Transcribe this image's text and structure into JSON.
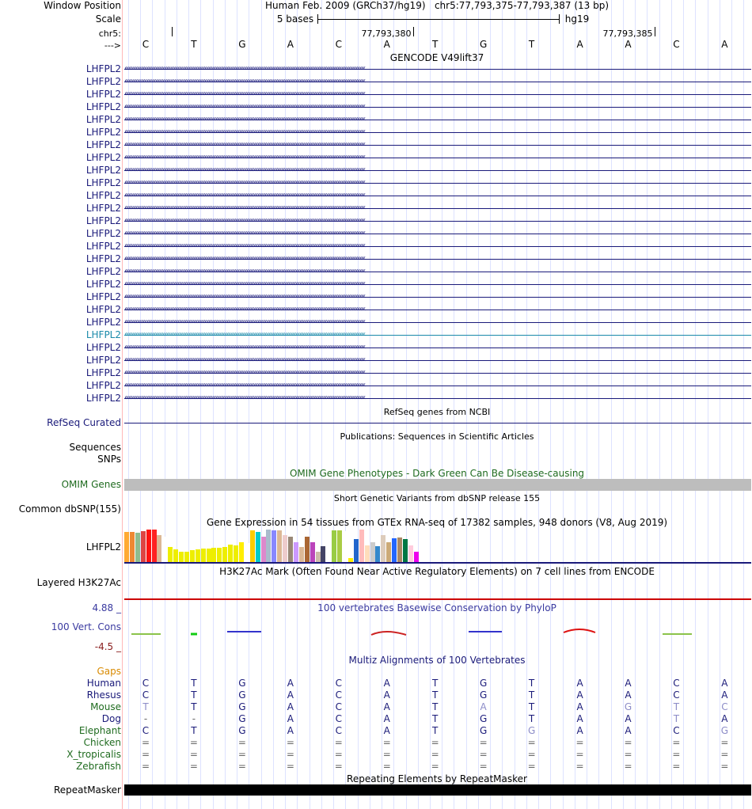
{
  "header": {
    "window_position_label": "Window Position",
    "scale_label": "Scale",
    "chrom_label": "chr5:",
    "strand_label": "--->",
    "assembly_title": "Human Feb. 2009 (GRCh37/hg19)   chr5:77,793,375-77,793,387 (13 bp)",
    "scale_text": "5 bases",
    "scale_db": "hg19",
    "pos1": "77,793,380",
    "pos2": "77,793,385"
  },
  "sequence": [
    "C",
    "T",
    "G",
    "A",
    "C",
    "A",
    "T",
    "G",
    "T",
    "A",
    "A",
    "C",
    "A"
  ],
  "gencode": {
    "title": "GENCODE V49lift37",
    "gene_name": "LHFPL2",
    "rows": 27,
    "highlight_index": 21,
    "color": "#1a1a7a",
    "highlight_color": "#1a8aaa"
  },
  "refseq": {
    "label": "RefSeq Curated",
    "title": "RefSeq genes from NCBI"
  },
  "publications": {
    "title": "Publications: Sequences in Scientific Articles",
    "label1": "Sequences",
    "label2": "SNPs"
  },
  "omim": {
    "label": "OMIM Genes",
    "title": "OMIM Gene Phenotypes - Dark Green Can Be Disease-causing"
  },
  "dbsnp": {
    "label": "Common dbSNP(155)",
    "title": "Short Genetic Variants from dbSNP release 155"
  },
  "gtex": {
    "title": "Gene Expression in 54 tissues from GTEx RNA-seq of 17382 samples, 948 donors (V8, Aug 2019)",
    "label": "LHFPL2",
    "values": [
      0.9,
      0.9,
      0.88,
      0.92,
      0.97,
      0.98,
      0.82,
      0.77,
      0.45,
      0.37,
      0.3,
      0.32,
      0.35,
      0.38,
      0.4,
      0.41,
      0.42,
      0.44,
      0.45,
      0.52,
      0.49,
      0.6,
      0.58,
      0.95,
      0.9,
      0.75,
      0.98,
      0.96,
      0.95,
      0.8,
      0.75,
      0.6,
      0.45,
      0.75,
      0.6,
      0.32,
      0.48,
      0.3,
      0.95,
      0.95,
      0.92,
      0.12,
      0.7,
      0.97,
      0.5,
      0.6,
      0.48,
      0.8,
      0.6,
      0.72,
      0.74,
      0.7,
      0.5,
      0.3
    ],
    "colors": [
      "#ffaa33",
      "#ee8833",
      "#8fbc8f",
      "#dd4444",
      "#ff1111",
      "#ff2222",
      "#dcb896",
      "#ffffff",
      "#eeee00",
      "#eeee00",
      "#eeee00",
      "#eeee00",
      "#eeee00",
      "#eeee00",
      "#eeee00",
      "#eeee00",
      "#eeee00",
      "#eeee00",
      "#eeee00",
      "#eeee00",
      "#eeee00",
      "#ffee00",
      "#ffffff",
      "#ffcc00",
      "#00cccc",
      "#dd88cc",
      "#aabbcc",
      "#8888ff",
      "#dcb896",
      "#eecccc",
      "#998877",
      "#cc99ff",
      "#dcb896",
      "#aa6633",
      "#bb44bb",
      "#ccbbaa",
      "#444466",
      "#ffffff",
      "#99cc44",
      "#aacc44",
      "#ffffff",
      "#ffee00",
      "#2266cc",
      "#ffbbbb",
      "#ffddbb",
      "#cccccc",
      "#3388cc",
      "#ddccbb",
      "#ccaa77",
      "#2266ff",
      "#aa8866",
      "#007744",
      "#ffccdd",
      "#ee00ee"
    ],
    "baseline_color": "#1a1a7a"
  },
  "h3k27ac": {
    "label": "Layered H3K27Ac",
    "title": "H3K27Ac Mark (Often Found Near Active Regulatory Elements) on 7 cell lines from ENCODE",
    "line_color": "#cc0000"
  },
  "phylop": {
    "title": "100 vertebrates Basewise Conservation by PhyloP",
    "label": "100 Vert. Cons",
    "max_label": "4.88 _",
    "min_label": "-4.5 _",
    "max_color": "#3a3aa0",
    "min_color": "#8b2020"
  },
  "multiz": {
    "title": "Multiz Alignments of 100 Vertebrates",
    "gaps_label": "Gaps",
    "species": [
      {
        "name": "Human",
        "color": "#1a1a7a",
        "seq": [
          "C",
          "T",
          "G",
          "A",
          "C",
          "A",
          "T",
          "G",
          "T",
          "A",
          "A",
          "C",
          "A"
        ]
      },
      {
        "name": "Rhesus",
        "color": "#1a1a7a",
        "seq": [
          "C",
          "T",
          "G",
          "A",
          "C",
          "A",
          "T",
          "G",
          "T",
          "A",
          "A",
          "C",
          "A"
        ]
      },
      {
        "name": "Mouse",
        "color": "#1f6b1f",
        "seq": [
          "T",
          "T",
          "G",
          "A",
          "C",
          "A",
          "T",
          "A",
          "T",
          "A",
          "G",
          "T",
          "C"
        ]
      },
      {
        "name": "Dog",
        "color": "#1a1a7a",
        "seq": [
          "-",
          "-",
          "G",
          "A",
          "C",
          "A",
          "T",
          "G",
          "T",
          "A",
          "A",
          "T",
          "A"
        ]
      },
      {
        "name": "Elephant",
        "color": "#1f6b1f",
        "seq": [
          "C",
          "T",
          "G",
          "A",
          "C",
          "A",
          "T",
          "G",
          "G",
          "A",
          "A",
          "C",
          "G"
        ]
      },
      {
        "name": "Chicken",
        "color": "#1f6b1f",
        "seq": [
          "=",
          "=",
          "=",
          "=",
          "=",
          "=",
          "=",
          "=",
          "=",
          "=",
          "=",
          "=",
          "="
        ]
      },
      {
        "name": "X_tropicalis",
        "color": "#1f6b1f",
        "seq": [
          "=",
          "=",
          "=",
          "=",
          "=",
          "=",
          "=",
          "=",
          "=",
          "=",
          "=",
          "=",
          "="
        ]
      },
      {
        "name": "Zebrafish",
        "color": "#1f6b1f",
        "seq": [
          "=",
          "=",
          "=",
          "=",
          "=",
          "=",
          "=",
          "=",
          "=",
          "=",
          "=",
          "=",
          "="
        ]
      }
    ],
    "mismatch": [
      [],
      [],
      [
        0,
        7,
        10,
        11,
        12
      ],
      [
        0,
        1,
        11
      ],
      [
        8,
        12
      ],
      [],
      [],
      []
    ]
  },
  "repeatmasker": {
    "label": "RepeatMasker",
    "title": "Repeating Elements by RepeatMasker"
  }
}
